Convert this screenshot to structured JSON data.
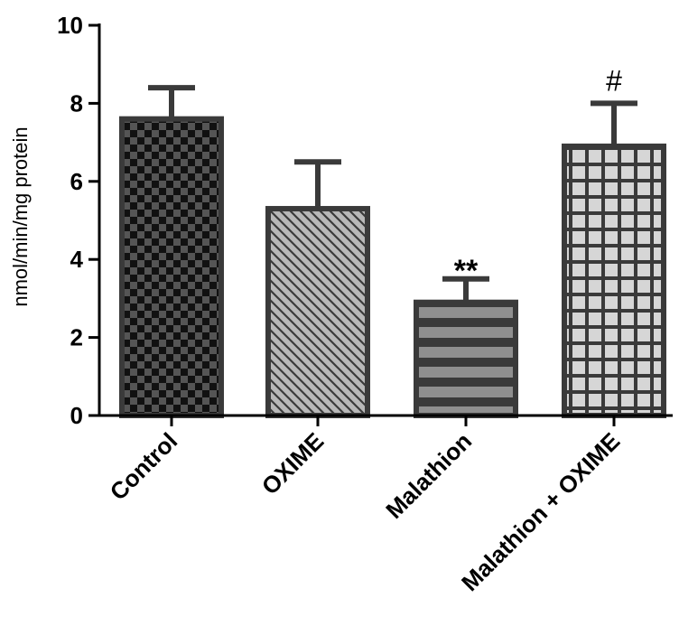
{
  "chart_data": {
    "type": "bar",
    "title": "",
    "xlabel": "",
    "ylabel": "nmol/min/mg protein",
    "ylim": [
      0,
      10
    ],
    "yticks": [
      "0",
      "2",
      "4",
      "6",
      "8",
      "10"
    ],
    "grid": false,
    "categories": [
      "Control",
      "OXIME",
      "Malathion",
      "Malathion + OXIME"
    ],
    "values": [
      7.6,
      5.3,
      2.9,
      6.9
    ],
    "errors": [
      0.8,
      1.2,
      0.6,
      1.1
    ],
    "annotations": [
      "",
      "",
      "**",
      "#"
    ],
    "patterns": [
      "checkerboard",
      "diagonal-hatch",
      "horizontal-stripes",
      "grid"
    ],
    "colors": {
      "outline": "#3a3a3a",
      "checker_dark": "#111111",
      "checker_light": "#555555",
      "hatch_bg": "#b8b8b8",
      "hatch_line": "#3a3a3a",
      "stripe_light": "#8f8f8f",
      "stripe_dark": "#3a3a3a",
      "grid_bg": "#d6d6d6",
      "grid_line": "#3a3a3a"
    }
  }
}
